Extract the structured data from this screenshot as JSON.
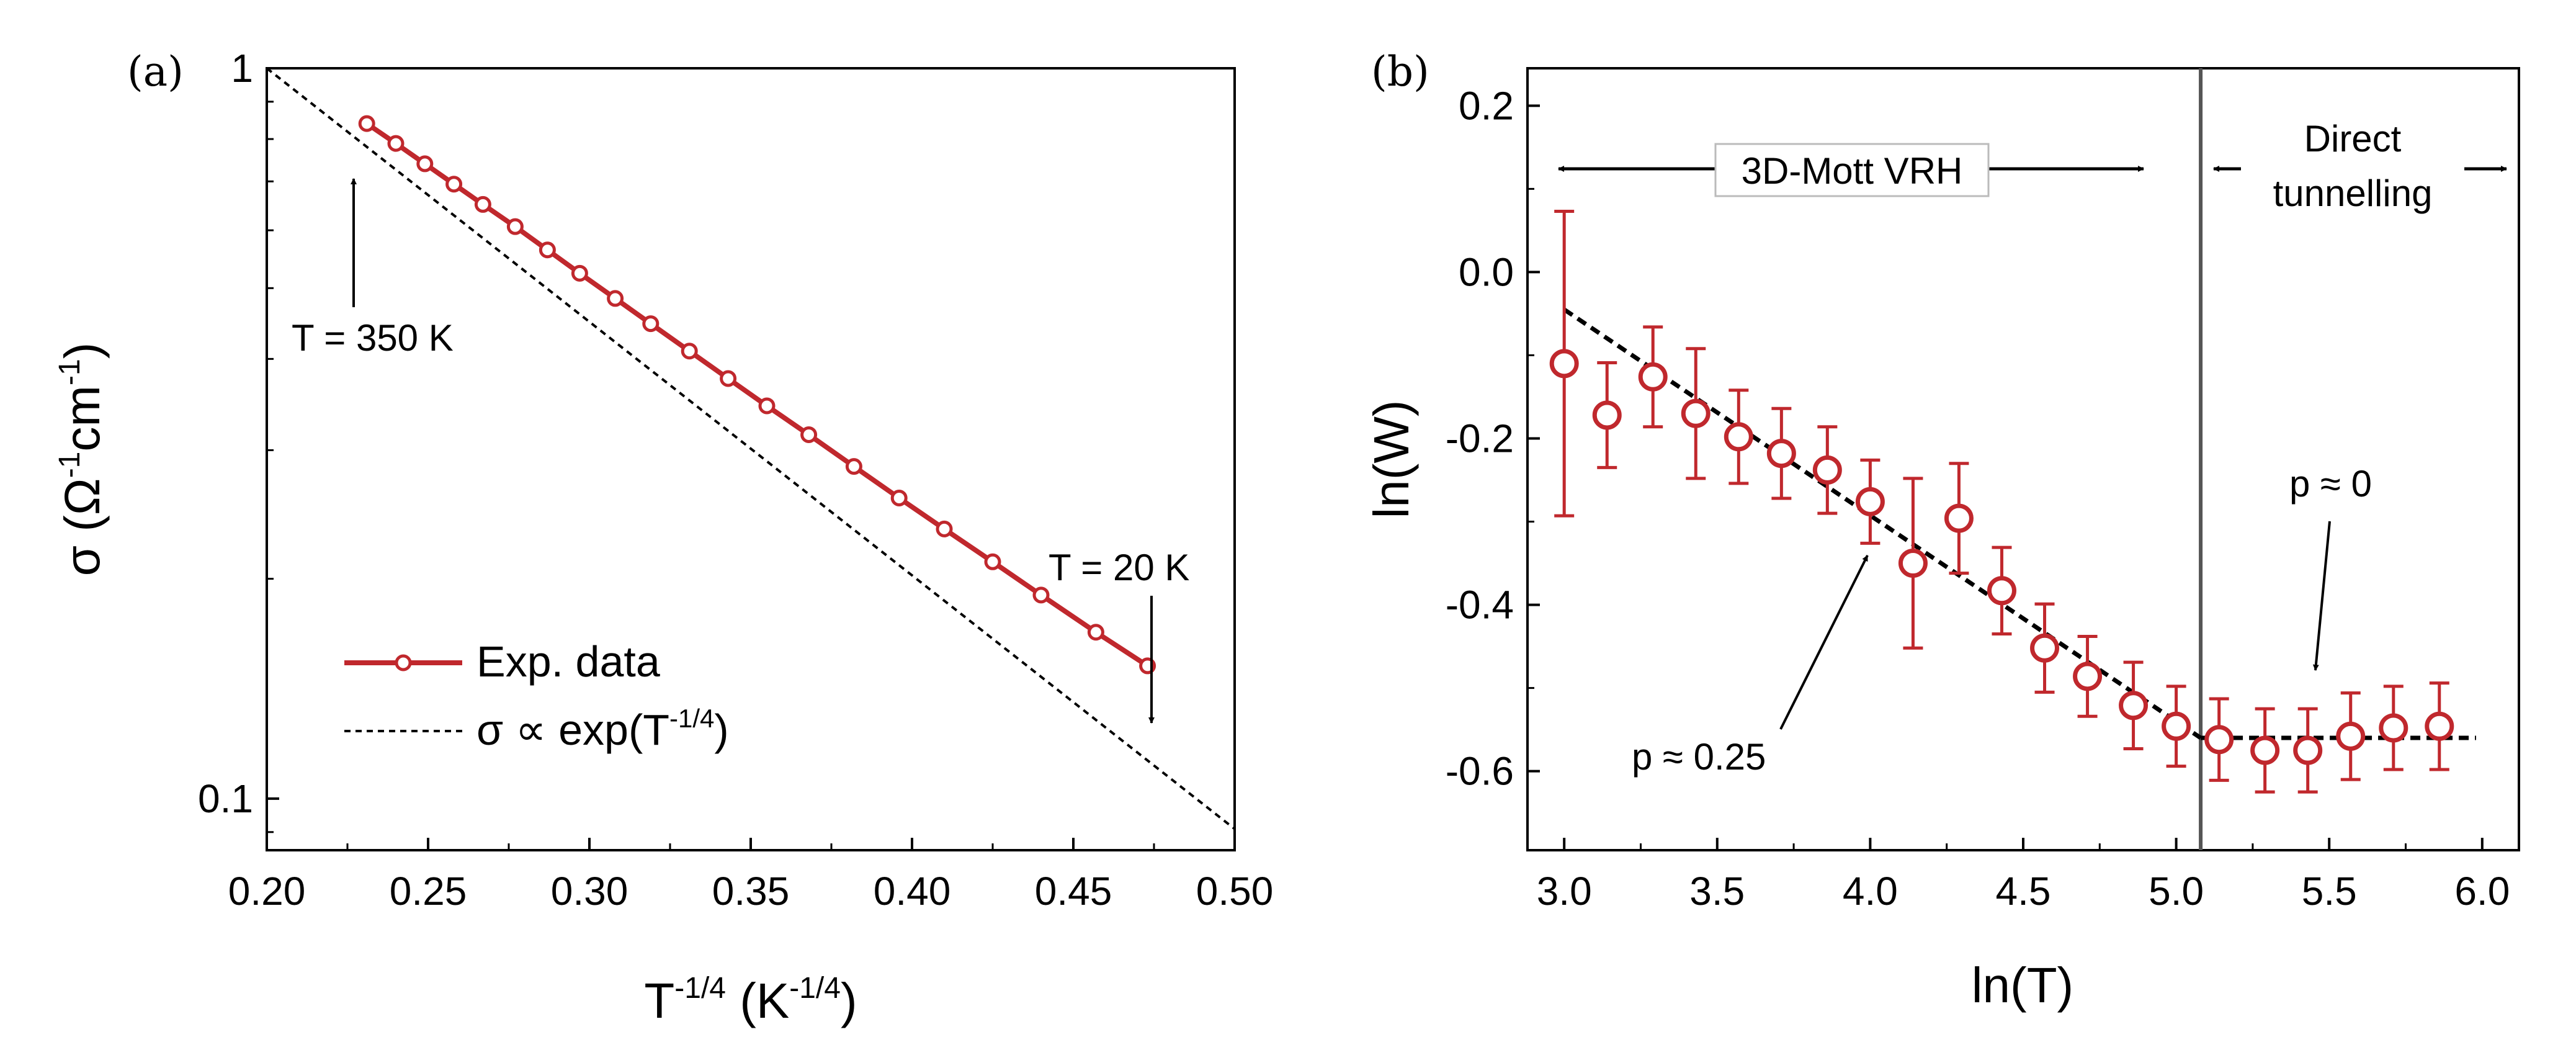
{
  "chart_data": [
    {
      "panel_label": "(a)",
      "type": "line",
      "yscale": "log",
      "xlabel": {
        "base": "T",
        "base_sup": "-1/4",
        "unit_open": " (K",
        "unit_sup": "-1/4",
        "unit_close": ")"
      },
      "ylabel": {
        "p1": "σ (Ω",
        "s1": "-1",
        "p2": "cm",
        "s2": "-1",
        "p3": ")"
      },
      "xlim": [
        0.2,
        0.5
      ],
      "ylim": [
        0.085,
        1.0
      ],
      "xticks": [
        0.2,
        0.25,
        0.3,
        0.35,
        0.4,
        0.45,
        0.5
      ],
      "xtick_labels": [
        "0.20",
        "0.25",
        "0.30",
        "0.35",
        "0.40",
        "0.45",
        "0.50"
      ],
      "yticks": [
        0.1,
        1
      ],
      "ytick_labels": [
        "0.1",
        "1"
      ],
      "series": [
        {
          "name": "Exp. data",
          "color": "#c0282d",
          "x": [
            0.231,
            0.24,
            0.249,
            0.258,
            0.267,
            0.277,
            0.287,
            0.297,
            0.308,
            0.319,
            0.331,
            0.343,
            0.355,
            0.368,
            0.382,
            0.396,
            0.41,
            0.425,
            0.44,
            0.457,
            0.473
          ],
          "y": [
            0.84,
            0.789,
            0.74,
            0.694,
            0.651,
            0.607,
            0.564,
            0.524,
            0.484,
            0.447,
            0.41,
            0.376,
            0.345,
            0.315,
            0.285,
            0.258,
            0.234,
            0.211,
            0.19,
            0.169,
            0.152
          ]
        },
        {
          "name": "σ ∝ exp(T",
          "name_sup": "-1/4",
          "name_close": ")",
          "color": "#000000",
          "style": "dashed",
          "x": [
            0.2,
            0.5
          ],
          "y": [
            1.0,
            0.0909
          ]
        }
      ],
      "annotations": [
        {
          "text": "T = 350 K",
          "x": 0.231,
          "y": 0.84
        },
        {
          "text": "T = 20 K",
          "x": 0.473,
          "y": 0.112
        }
      ]
    },
    {
      "panel_label": "(b)",
      "type": "scatter",
      "xlabel": "ln(T)",
      "ylabel": "ln(W)",
      "xlim": [
        2.88,
        6.12
      ],
      "ylim": [
        -0.695,
        0.245
      ],
      "xticks": [
        3.0,
        3.5,
        4.0,
        4.5,
        5.0,
        5.5,
        6.0
      ],
      "xtick_labels": [
        "3.0",
        "3.5",
        "4.0",
        "4.5",
        "5.0",
        "5.5",
        "6.0"
      ],
      "yticks": [
        0.2,
        0.0,
        -0.2,
        -0.4,
        -0.6
      ],
      "ytick_labels": [
        "0.2",
        "0.0",
        "-0.2",
        "-0.4",
        "-0.6"
      ],
      "series": [
        {
          "name": "ln(W)",
          "color": "#c0282d",
          "x": [
            3.0,
            3.14,
            3.29,
            3.43,
            3.57,
            3.71,
            3.86,
            4.0,
            4.14,
            4.29,
            4.43,
            4.57,
            4.71,
            4.86,
            5.0,
            5.14,
            5.29,
            5.43,
            5.57,
            5.71,
            5.86
          ],
          "y": [
            -0.11,
            -0.172,
            -0.126,
            -0.17,
            -0.198,
            -0.218,
            -0.238,
            -0.276,
            -0.35,
            -0.296,
            -0.383,
            -0.452,
            -0.486,
            -0.521,
            -0.546,
            -0.562,
            -0.575,
            -0.575,
            -0.558,
            -0.548,
            -0.546
          ],
          "err": [
            0.183,
            0.063,
            0.06,
            0.078,
            0.056,
            0.054,
            0.052,
            0.05,
            0.102,
            0.066,
            0.052,
            0.053,
            0.048,
            0.052,
            0.048,
            0.049,
            0.05,
            0.05,
            0.052,
            0.05,
            0.052
          ]
        },
        {
          "name": "fit p ≈ 0.25",
          "color": "#000000",
          "style": "dashed",
          "x": [
            3.0,
            5.08
          ],
          "y": [
            -0.045,
            -0.56
          ]
        },
        {
          "name": "fit p ≈ 0",
          "color": "#000000",
          "style": "dashed",
          "x": [
            5.08,
            5.98
          ],
          "y": [
            -0.56,
            -0.56
          ]
        }
      ],
      "vline_x": 5.08,
      "regions": [
        {
          "label": "3D-Mott VRH",
          "x_from": 2.9,
          "x_to": 4.95,
          "y": 0.13
        },
        {
          "label_lines": [
            "Direct",
            "tunnelling"
          ],
          "x_from": 5.09,
          "x_to": 6.1,
          "y": 0.13
        }
      ],
      "annotations": [
        {
          "text": "p ≈ 0.25",
          "x": 4.03,
          "y": -0.33
        },
        {
          "text": "p ≈ 0",
          "x": 5.6,
          "y": -0.525
        }
      ]
    }
  ]
}
